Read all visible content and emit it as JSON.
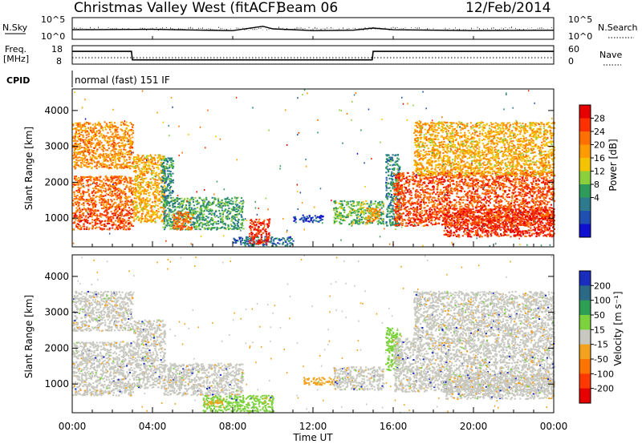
{
  "header": {
    "title": "Christmas Valley West (fitACF)",
    "beam": "Beam 06",
    "date": "12/Feb/2014",
    "cpid_label": "CPID",
    "cpid_value": "normal (fast) 151 IF"
  },
  "nsky_panel": {
    "left_label": "N.Sky",
    "right_label": "N.Search",
    "ticks": [
      "10^5",
      "10^0"
    ]
  },
  "freq_panel": {
    "left_label_line1": "Freq.",
    "left_label_line2": "[MHz]",
    "left_ticks": [
      "18",
      "8"
    ],
    "right_label": "Nave",
    "right_ticks": [
      "60",
      "0"
    ]
  },
  "chart_data": [
    {
      "type": "heatmap",
      "panel": "power",
      "ylabel": "Slant Range [km]",
      "yticks": [
        "4000",
        "3000",
        "2000",
        "1000"
      ],
      "ylim": [
        200,
        4600
      ],
      "xlim": [
        0,
        24
      ],
      "colorbar_label": "Power [dB]",
      "colorbar_ticks": [
        "28",
        "24",
        "20",
        "16",
        "12",
        "8",
        "4"
      ],
      "colorbar_colors": [
        "#e60000",
        "#ff3000",
        "#ff7000",
        "#ff9a00",
        "#f5c400",
        "#8ccf3c",
        "#2e9b5a",
        "#2d7a8c",
        "#1f4fb0",
        "#1010d0"
      ],
      "regions": [
        {
          "t0": 0.0,
          "t1": 3.0,
          "r0": 700,
          "r1": 1300,
          "level": 26
        },
        {
          "t0": 0.0,
          "t1": 3.0,
          "r0": 1300,
          "r1": 2200,
          "level": 24
        },
        {
          "t0": 0.0,
          "t1": 3.0,
          "r0": 2400,
          "r1": 3700,
          "level": 22
        },
        {
          "t0": 3.0,
          "t1": 4.6,
          "r0": 900,
          "r1": 2800,
          "level": 20
        },
        {
          "t0": 4.4,
          "t1": 5.0,
          "r0": 1400,
          "r1": 2700,
          "level": 10
        },
        {
          "t0": 4.5,
          "t1": 8.5,
          "r0": 700,
          "r1": 1600,
          "level": 12
        },
        {
          "t0": 5.0,
          "t1": 6.0,
          "r0": 700,
          "r1": 1200,
          "level": 24
        },
        {
          "t0": 8.0,
          "t1": 11.0,
          "r0": 250,
          "r1": 500,
          "level": 8
        },
        {
          "t0": 8.8,
          "t1": 9.8,
          "r0": 300,
          "r1": 1000,
          "level": 28
        },
        {
          "t0": 11.0,
          "t1": 12.5,
          "r0": 900,
          "r1": 1100,
          "level": 6
        },
        {
          "t0": 13.0,
          "t1": 15.5,
          "r0": 850,
          "r1": 1500,
          "level": 14
        },
        {
          "t0": 14.6,
          "t1": 15.3,
          "r0": 900,
          "r1": 1300,
          "level": 22
        },
        {
          "t0": 15.6,
          "t1": 16.3,
          "r0": 800,
          "r1": 2800,
          "level": 10
        },
        {
          "t0": 16.0,
          "t1": 24.0,
          "r0": 800,
          "r1": 2300,
          "level": 26
        },
        {
          "t0": 18.5,
          "t1": 24.0,
          "r0": 500,
          "r1": 1300,
          "level": 28
        },
        {
          "t0": 17.0,
          "t1": 24.0,
          "r0": 2200,
          "r1": 3700,
          "level": 20
        }
      ]
    },
    {
      "type": "heatmap",
      "panel": "velocity",
      "ylabel": "Slant Range [km]",
      "yticks": [
        "4000",
        "3000",
        "2000",
        "1000"
      ],
      "ylim": [
        200,
        4600
      ],
      "xlim": [
        0,
        24
      ],
      "xlabel": "Time UT",
      "xticks": [
        "00:00",
        "04:00",
        "08:00",
        "12:00",
        "16:00",
        "20:00",
        "00:00"
      ],
      "colorbar_label": "Velocity [m s⁻¹]",
      "colorbar_ticks": [
        "200",
        "100",
        "50",
        "15",
        "-15",
        "-50",
        "-100",
        "-200"
      ],
      "colorbar_colors": [
        "#1a2dbf",
        "#2a6a86",
        "#2f9e55",
        "#7cd23c",
        "#c8c8c0",
        "#f2a21e",
        "#ff7400",
        "#ff3800",
        "#e60000"
      ],
      "regions": [
        {
          "t0": 0.0,
          "t1": 3.0,
          "r0": 700,
          "r1": 1300,
          "vel": "gray"
        },
        {
          "t0": 0.0,
          "t1": 3.0,
          "r0": 1300,
          "r1": 2200,
          "vel": "gray"
        },
        {
          "t0": 0.0,
          "t1": 3.0,
          "r0": 2500,
          "r1": 3600,
          "vel": "gray"
        },
        {
          "t0": 3.0,
          "t1": 4.6,
          "r0": 900,
          "r1": 2800,
          "vel": "gray"
        },
        {
          "t0": 4.5,
          "t1": 8.5,
          "r0": 700,
          "r1": 1600,
          "vel": "gray"
        },
        {
          "t0": 6.5,
          "t1": 10.0,
          "r0": 250,
          "r1": 700,
          "vel": "green"
        },
        {
          "t0": 6.5,
          "t1": 7.5,
          "r0": 450,
          "r1": 550,
          "vel": "orange"
        },
        {
          "t0": 11.5,
          "t1": 13.0,
          "r0": 1000,
          "r1": 1200,
          "vel": "orange"
        },
        {
          "t0": 13.0,
          "t1": 15.5,
          "r0": 850,
          "r1": 1500,
          "vel": "gray"
        },
        {
          "t0": 15.6,
          "t1": 16.3,
          "r0": 1400,
          "r1": 2600,
          "vel": "green"
        },
        {
          "t0": 16.0,
          "t1": 24.0,
          "r0": 800,
          "r1": 2300,
          "vel": "gray"
        },
        {
          "t0": 18.5,
          "t1": 24.0,
          "r0": 600,
          "r1": 1300,
          "vel": "gray"
        },
        {
          "t0": 17.0,
          "t1": 24.0,
          "r0": 2300,
          "r1": 3600,
          "vel": "gray"
        }
      ]
    }
  ],
  "noise_series": {
    "type": "line",
    "x": [
      0,
      4,
      8,
      9.5,
      10,
      12,
      14,
      15,
      16,
      20,
      24
    ],
    "nsky": [
      2.2,
      2.3,
      2.0,
      3.0,
      2.4,
      2.0,
      2.1,
      2.6,
      2.2,
      2.0,
      2.1
    ]
  },
  "freq_series": {
    "type": "line",
    "x": [
      0,
      2.95,
      3.0,
      14.95,
      15.0,
      24
    ],
    "freq": [
      15,
      15,
      9,
      9,
      15,
      15
    ],
    "nave_dotted": 14
  }
}
